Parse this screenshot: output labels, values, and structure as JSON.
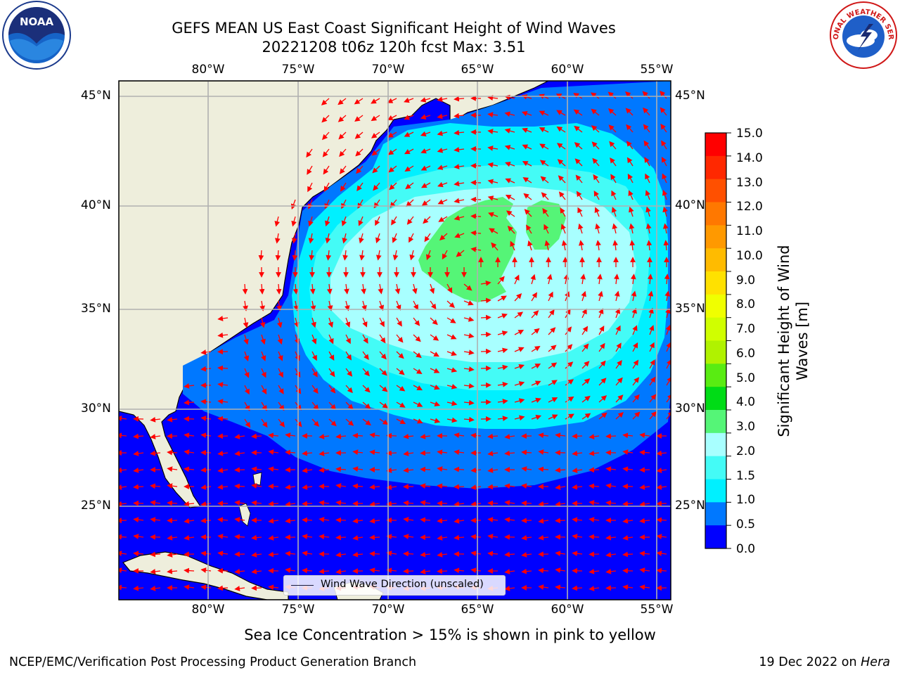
{
  "header": {
    "title_line1": "GEFS MEAN US East Coast Significant Height of Wind Waves",
    "title_line2": "20221208 t06z 120h fcst   Max: 3.51"
  },
  "map": {
    "lon_labels": [
      "80°W",
      "75°W",
      "70°W",
      "65°W",
      "60°W",
      "55°W"
    ],
    "lat_labels": [
      "45°N",
      "40°N",
      "35°N",
      "30°N",
      "25°N"
    ],
    "legend_label": "Wind Wave Direction (unscaled)"
  },
  "colorbar": {
    "title": "Significant Height of Wind Waves [m]",
    "ticks": [
      "15.0",
      "14.0",
      "13.0",
      "12.0",
      "11.0",
      "10.0",
      "9.0",
      "8.0",
      "7.0",
      "6.0",
      "5.0",
      "4.0",
      "3.0",
      "2.0",
      "1.5",
      "1.0",
      "0.5",
      "0.0"
    ],
    "colors": [
      "#ff0000",
      "#ff2800",
      "#ff5000",
      "#ff7800",
      "#ff9900",
      "#ffbb00",
      "#ffe100",
      "#f0ff00",
      "#d0ff00",
      "#b0f200",
      "#59ec12",
      "#00dc16",
      "#55f577",
      "#a8ffff",
      "#44fbf6",
      "#00f0ff",
      "#0078ff",
      "#0000ff"
    ]
  },
  "colors": {
    "land": "#eeeedc",
    "ocean_low": "#0000ff",
    "ocean_mid": "#0078ff",
    "ocean_1": "#00f0ff",
    "ocean_2": "#44fbf6",
    "ocean_3": "#a8ffff",
    "peak": "#55f577",
    "arrow": "#ff0000",
    "grid": "#b0b0b0"
  },
  "footer": {
    "note": "Sea Ice Concentration > 15% is shown in pink to yellow",
    "left": "NCEP/EMC/Verification Post Processing Product Generation Branch",
    "right_prefix": "19 Dec 2022 on ",
    "right_host": "Hera"
  },
  "logos": {
    "noaa": "NOAA",
    "nws": "NATIONAL WEATHER SERVICE"
  }
}
